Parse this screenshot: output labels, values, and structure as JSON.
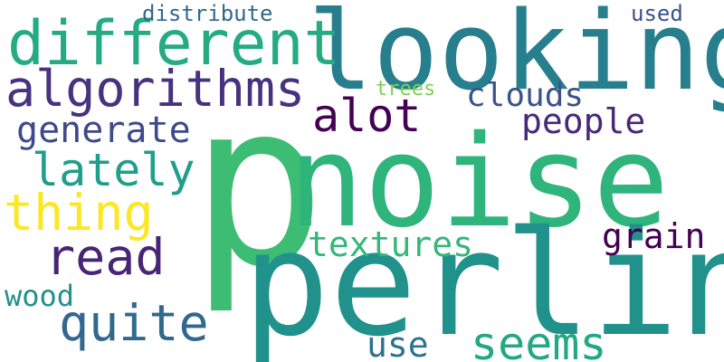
{
  "words": [
    {
      "key": "p",
      "text": "p",
      "color": "#3dbc74"
    },
    {
      "key": "noise",
      "text": "noise",
      "color": "#2fb47c"
    },
    {
      "key": "perlin",
      "text": "perlin",
      "color": "#21918c"
    },
    {
      "key": "looking",
      "text": "looking",
      "color": "#277f8e"
    },
    {
      "key": "different",
      "text": "different",
      "color": "#25ab82"
    },
    {
      "key": "algorithms",
      "text": "algorithms",
      "color": "#46327e"
    },
    {
      "key": "alot",
      "text": "alot",
      "color": "#440154"
    },
    {
      "key": "clouds",
      "text": "clouds",
      "color": "#3b528b"
    },
    {
      "key": "people",
      "text": "people",
      "color": "#482878"
    },
    {
      "key": "generate",
      "text": "generate",
      "color": "#3e4a89"
    },
    {
      "key": "lately",
      "text": "lately",
      "color": "#1f9e89"
    },
    {
      "key": "thing",
      "text": "thing",
      "color": "#fde725"
    },
    {
      "key": "read",
      "text": "read",
      "color": "#482475"
    },
    {
      "key": "quite",
      "text": "quite",
      "color": "#31688e"
    },
    {
      "key": "wood",
      "text": "wood",
      "color": "#21918c"
    },
    {
      "key": "textures",
      "text": "textures",
      "color": "#35b779"
    },
    {
      "key": "grain",
      "text": "grain",
      "color": "#440154"
    },
    {
      "key": "use",
      "text": "use",
      "color": "#2c728e"
    },
    {
      "key": "seems",
      "text": "seems",
      "color": "#22a884"
    },
    {
      "key": "distribute",
      "text": "distribute",
      "color": "#31688e"
    },
    {
      "key": "used",
      "text": "used",
      "color": "#3b528b"
    },
    {
      "key": "trees",
      "text": "trees",
      "color": "#7ad151"
    }
  ]
}
